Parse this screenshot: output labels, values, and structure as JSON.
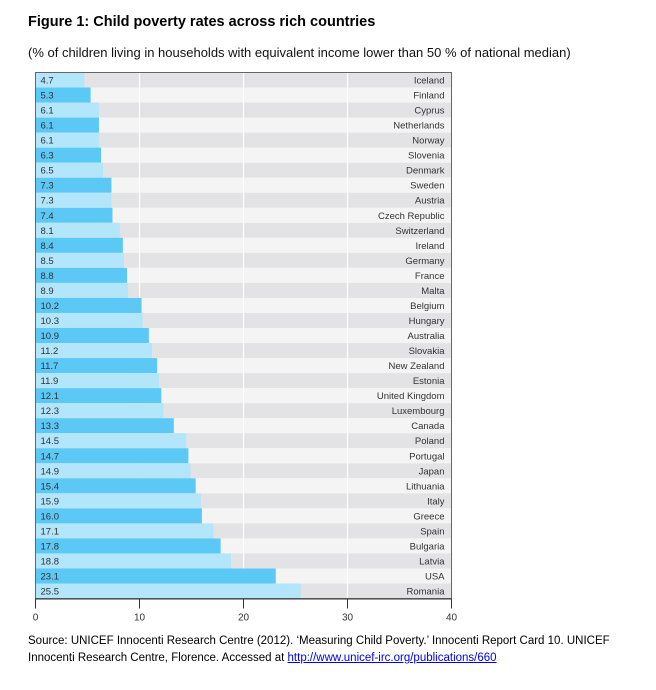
{
  "chart_data": {
    "type": "bar",
    "orientation": "horizontal",
    "title": "Figure 1: Child poverty rates across rich countries",
    "subtitle": "(% of children living in households with equivalent income lower than 50 % of national median)",
    "categories": [
      "Iceland",
      "Finland",
      "Cyprus",
      "Netherlands",
      "Norway",
      "Slovenia",
      "Denmark",
      "Sweden",
      "Austria",
      "Czech Republic",
      "Switzerland",
      "Ireland",
      "Germany",
      "France",
      "Malta",
      "Belgium",
      "Hungary",
      "Australia",
      "Slovakia",
      "New Zealand",
      "Estonia",
      "United Kingdom",
      "Luxembourg",
      "Canada",
      "Poland",
      "Portugal",
      "Japan",
      "Lithuania",
      "Italy",
      "Greece",
      "Spain",
      "Bulgaria",
      "Latvia",
      "USA",
      "Romania"
    ],
    "values": [
      4.7,
      5.3,
      6.1,
      6.1,
      6.1,
      6.3,
      6.5,
      7.3,
      7.3,
      7.4,
      8.1,
      8.4,
      8.5,
      8.8,
      8.9,
      10.2,
      10.3,
      10.9,
      11.2,
      11.7,
      11.9,
      12.1,
      12.3,
      13.3,
      14.5,
      14.7,
      14.9,
      15.4,
      15.9,
      16.0,
      17.1,
      17.8,
      18.8,
      23.1,
      25.5
    ],
    "value_labels": [
      "4.7",
      "5.3",
      "6.1",
      "6.1",
      "6.1",
      "6.3",
      "6.5",
      "7.3",
      "7.3",
      "7.4",
      "8.1",
      "8.4",
      "8.5",
      "8.8",
      "8.9",
      "10.2",
      "10.3",
      "10.9",
      "11.2",
      "11.7",
      "11.9",
      "12.1",
      "12.3",
      "13.3",
      "14.5",
      "14.7",
      "14.9",
      "15.4",
      "15.9",
      "16.0",
      "17.1",
      "17.8",
      "18.8",
      "23.1",
      "25.5"
    ],
    "xlim": [
      0,
      40
    ],
    "xticks": [
      "0",
      "10",
      "20",
      "30",
      "40"
    ],
    "xlabel": "",
    "ylabel": "",
    "grid": true,
    "colors": {
      "bar_light": "#b3e5fb",
      "bar_dark": "#5cc8f6",
      "row_light": "#e3e3e5",
      "row_dark": "#f4f4f4"
    }
  },
  "source": {
    "text": "Source: UNICEF Innocenti Research Centre (2012). ‘Measuring Child Poverty.’ Innocenti Report Card 10. UNICEF Innocenti Research Centre, Florence. Accessed at ",
    "link": "http://www.unicef-irc.org/publications/660"
  }
}
